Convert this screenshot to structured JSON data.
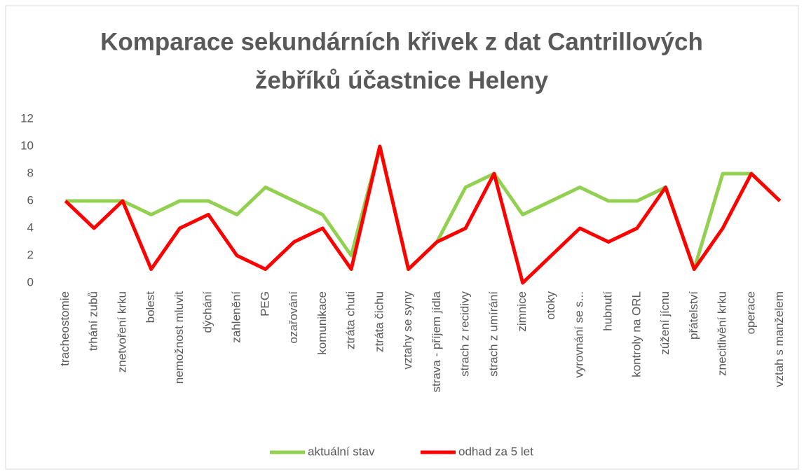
{
  "chart_data": {
    "type": "line",
    "title": [
      "Komparace sekundárních křivek z dat Cantrillových",
      "žebříků účastnice Heleny"
    ],
    "categories": [
      "tracheostomie",
      "trhání zubů",
      "znetvoření krku",
      "bolest",
      "nemožnost mluvit",
      "dýchání",
      "zahlenění",
      "PEG",
      "ozařování",
      "komunikace",
      "ztráta chuti",
      "ztráta čichu",
      "vztahy se syny",
      "strava - příjem jídla",
      "strach z recidivy",
      "strach z umírání",
      "zimnice",
      "otoky",
      "vyrovnání se s...",
      "hubnutí",
      "kontroly na ORL",
      "zúžení jícnu",
      "přátelství",
      "znecitlivění krku",
      "operace",
      "vztah s manželem"
    ],
    "series": [
      {
        "name": "aktuální stav",
        "color": "#92d050",
        "values": [
          6,
          6,
          6,
          5,
          6,
          6,
          5,
          7,
          6,
          5,
          2,
          10,
          1,
          3,
          7,
          8,
          5,
          6,
          7,
          6,
          6,
          7,
          1,
          8,
          8,
          6
        ]
      },
      {
        "name": "odhad za 5 let",
        "color": "#ff0000",
        "values": [
          6,
          4,
          6,
          1,
          4,
          5,
          2,
          1,
          3,
          4,
          1,
          10,
          1,
          3,
          4,
          8,
          0,
          2,
          4,
          3,
          4,
          7,
          1,
          4,
          8,
          6
        ]
      }
    ],
    "ylim": [
      0,
      12
    ],
    "yticks": [
      0,
      2,
      4,
      6,
      8,
      10,
      12
    ],
    "grid": false,
    "legend": "bottom"
  }
}
